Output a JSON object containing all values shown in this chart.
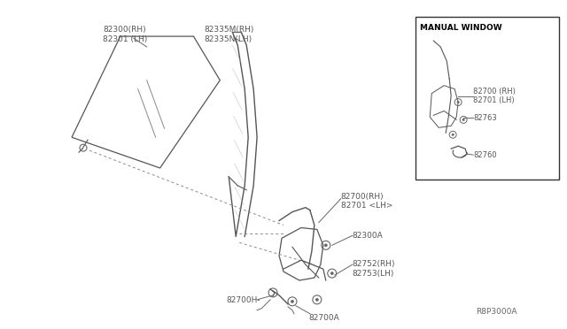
{
  "bg_color": "#ffffff",
  "line_color": "#666666",
  "text_color": "#555555",
  "diagram_note": "R8P3000A",
  "inset_label": "MANUAL WINDOW",
  "parts_labels": {
    "glass": "82300(RH)\n82301 (LH)",
    "frame": "82335M(RH)\n82335N(LH)",
    "reg1": "82700(RH)\n82701 <LH>",
    "bolt1": "82300A",
    "crank": "82752(RH)\n82753(LH)",
    "handle": "82700H",
    "boltA": "82700A",
    "inset_reg": "82700 (RH)\n82701 (LH)",
    "inset_clip": "82763",
    "inset_handle": "82760"
  }
}
